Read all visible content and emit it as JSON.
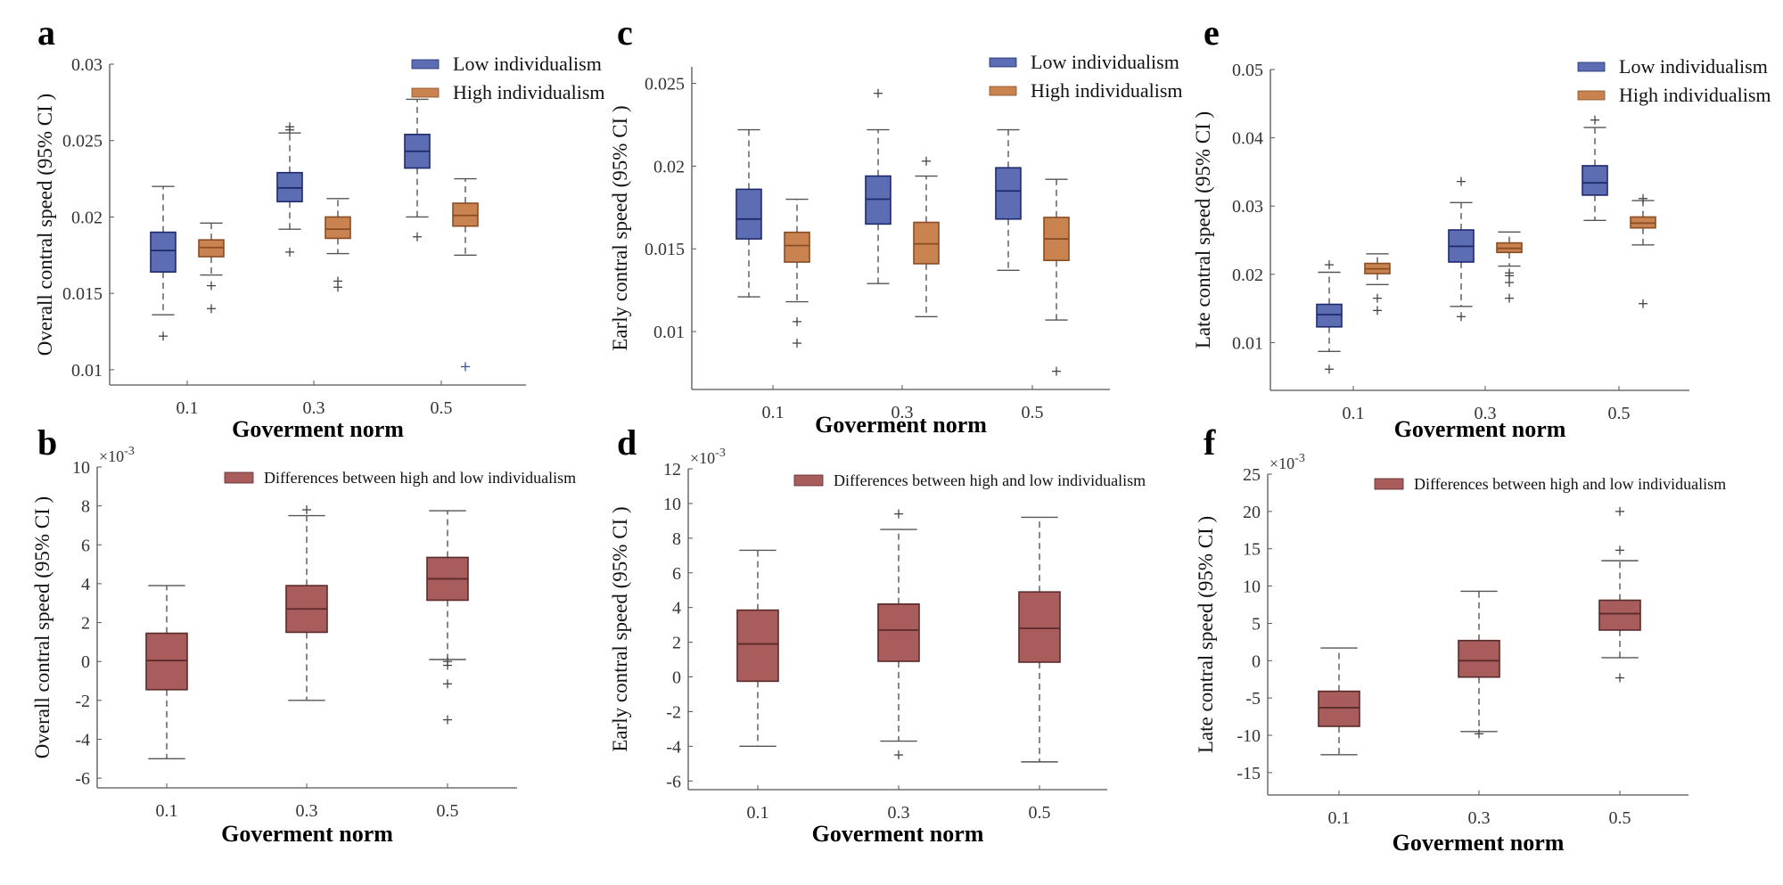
{
  "figure": {
    "colors": {
      "low": "#5c6db3",
      "low_edge": "#1f2a6b",
      "high": "#c88350",
      "high_edge": "#8a4d22",
      "diff": "#a85c5c",
      "diff_edge": "#5a2a2a",
      "whisker": "#555555",
      "outlier": "#444444",
      "outlier_blue": "#3a4fa8"
    }
  },
  "chart_data": [
    {
      "panel": "a",
      "type": "box",
      "xlabel": "Goverment norm",
      "ylabel": "Overall contral speed (95% CI )",
      "categories": [
        "0.1",
        "0.3",
        "0.5"
      ],
      "ylim": [
        0.009,
        0.03
      ],
      "yticks": [
        0.01,
        0.015,
        0.02,
        0.025,
        0.03
      ],
      "ytick_labels": [
        "0.01",
        "0.015",
        "0.02",
        "0.025",
        "0.03"
      ],
      "multiplier": "",
      "legend": [
        "Low individualism",
        "High individualism"
      ],
      "legend_position": "top-right",
      "series": [
        {
          "name": "Low individualism",
          "boxes": [
            {
              "whislo": 0.0136,
              "q1": 0.0164,
              "med": 0.0178,
              "q3": 0.019,
              "whishi": 0.022,
              "fliers": [
                0.0122
              ]
            },
            {
              "whislo": 0.0192,
              "q1": 0.021,
              "med": 0.0219,
              "q3": 0.0229,
              "whishi": 0.0255,
              "fliers": [
                0.0177,
                0.0257,
                0.0259
              ]
            },
            {
              "whislo": 0.02,
              "q1": 0.0232,
              "med": 0.0243,
              "q3": 0.0254,
              "whishi": 0.0277,
              "fliers": [
                0.0187
              ]
            }
          ]
        },
        {
          "name": "High individualism",
          "boxes": [
            {
              "whislo": 0.0162,
              "q1": 0.0174,
              "med": 0.018,
              "q3": 0.0185,
              "whishi": 0.0196,
              "fliers": [
                0.0155,
                0.014
              ]
            },
            {
              "whislo": 0.0176,
              "q1": 0.0186,
              "med": 0.0192,
              "q3": 0.02,
              "whishi": 0.0212,
              "fliers": [
                0.0158,
                0.0154
              ]
            },
            {
              "whislo": 0.0175,
              "q1": 0.0194,
              "med": 0.0201,
              "q3": 0.0209,
              "whishi": 0.0225,
              "fliers": [
                0.0102
              ]
            }
          ]
        }
      ]
    },
    {
      "panel": "b",
      "type": "box",
      "xlabel": "Goverment norm",
      "ylabel": "Overall contral speed (95% CI )",
      "categories": [
        "0.1",
        "0.3",
        "0.5"
      ],
      "ylim": [
        -6.5,
        10
      ],
      "yticks": [
        -6,
        -4,
        -2,
        0,
        2,
        4,
        6,
        8,
        10
      ],
      "ytick_labels": [
        "-6",
        "-4",
        "-2",
        "0",
        "2",
        "4",
        "6",
        "8",
        "10"
      ],
      "multiplier": "×10-3",
      "legend": [
        "Differences between high and low individualism"
      ],
      "legend_position": "top-right",
      "series": [
        {
          "name": "Differences between high and low individualism",
          "boxes": [
            {
              "whislo": -5.0,
              "q1": -1.45,
              "med": 0.05,
              "q3": 1.45,
              "whishi": 3.9,
              "fliers": []
            },
            {
              "whislo": -2.0,
              "q1": 1.5,
              "med": 2.7,
              "q3": 3.9,
              "whishi": 7.5,
              "fliers": [
                7.8
              ]
            },
            {
              "whislo": 0.1,
              "q1": 3.15,
              "med": 4.25,
              "q3": 5.35,
              "whishi": 7.75,
              "fliers": [
                0.0,
                -0.2,
                -1.15,
                -3.0
              ]
            }
          ]
        }
      ]
    },
    {
      "panel": "c",
      "type": "box",
      "xlabel": "Goverment norm",
      "ylabel": "Early contral speed (95% CI )",
      "categories": [
        "0.1",
        "0.3",
        "0.5"
      ],
      "ylim": [
        0.0065,
        0.026
      ],
      "yticks": [
        0.01,
        0.015,
        0.02,
        0.025
      ],
      "ytick_labels": [
        "0.01",
        "0.015",
        "0.02",
        "0.025"
      ],
      "multiplier": "",
      "legend": [
        "Low individualism",
        "High individualism"
      ],
      "legend_position": "top-right",
      "series": [
        {
          "name": "Low individualism",
          "boxes": [
            {
              "whislo": 0.0121,
              "q1": 0.0156,
              "med": 0.0168,
              "q3": 0.0186,
              "whishi": 0.0222,
              "fliers": []
            },
            {
              "whislo": 0.0129,
              "q1": 0.0165,
              "med": 0.018,
              "q3": 0.0194,
              "whishi": 0.0222,
              "fliers": [
                0.0244
              ]
            },
            {
              "whislo": 0.0137,
              "q1": 0.0168,
              "med": 0.0185,
              "q3": 0.0199,
              "whishi": 0.0222,
              "fliers": []
            }
          ]
        },
        {
          "name": "High individualism",
          "boxes": [
            {
              "whislo": 0.0118,
              "q1": 0.0142,
              "med": 0.0152,
              "q3": 0.016,
              "whishi": 0.018,
              "fliers": [
                0.0106,
                0.0093
              ]
            },
            {
              "whislo": 0.0109,
              "q1": 0.0141,
              "med": 0.0153,
              "q3": 0.0166,
              "whishi": 0.0194,
              "fliers": [
                0.0203
              ]
            },
            {
              "whislo": 0.0107,
              "q1": 0.0143,
              "med": 0.0156,
              "q3": 0.0169,
              "whishi": 0.0192,
              "fliers": [
                0.0076
              ]
            }
          ]
        }
      ]
    },
    {
      "panel": "d",
      "type": "box",
      "xlabel": "Goverment norm",
      "ylabel": "Early contral speed (95% CI )",
      "categories": [
        "0.1",
        "0.3",
        "0.5"
      ],
      "ylim": [
        -6.5,
        12
      ],
      "yticks": [
        -6,
        -4,
        -2,
        0,
        2,
        4,
        6,
        8,
        10,
        12
      ],
      "ytick_labels": [
        "-6",
        "-4",
        "-2",
        "0",
        "2",
        "4",
        "6",
        "8",
        "10",
        "12"
      ],
      "multiplier": "×10-3",
      "legend": [
        "Differences between high and low individualism"
      ],
      "legend_position": "top-right",
      "series": [
        {
          "name": "Differences between high and low individualism",
          "boxes": [
            {
              "whislo": -4.0,
              "q1": -0.25,
              "med": 1.9,
              "q3": 3.85,
              "whishi": 7.3,
              "fliers": []
            },
            {
              "whislo": -3.7,
              "q1": 0.9,
              "med": 2.7,
              "q3": 4.2,
              "whishi": 8.5,
              "fliers": [
                9.4,
                -4.5
              ]
            },
            {
              "whislo": -4.9,
              "q1": 0.85,
              "med": 2.8,
              "q3": 4.9,
              "whishi": 9.2,
              "fliers": []
            }
          ]
        }
      ]
    },
    {
      "panel": "e",
      "type": "box",
      "xlabel": "Goverment norm",
      "ylabel": "Late contral speed (95% CI )",
      "categories": [
        "0.1",
        "0.3",
        "0.5"
      ],
      "ylim": [
        0.003,
        0.05
      ],
      "yticks": [
        0.01,
        0.02,
        0.03,
        0.04,
        0.05
      ],
      "ytick_labels": [
        "0.01",
        "0.02",
        "0.03",
        "0.04",
        "0.05"
      ],
      "multiplier": "",
      "legend": [
        "Low individualism",
        "High individualism"
      ],
      "legend_position": "top-right",
      "series": [
        {
          "name": "Low individualism",
          "boxes": [
            {
              "whislo": 0.0087,
              "q1": 0.0123,
              "med": 0.0141,
              "q3": 0.0156,
              "whishi": 0.0203,
              "fliers": [
                0.0214,
                0.0061
              ]
            },
            {
              "whislo": 0.0153,
              "q1": 0.0218,
              "med": 0.0241,
              "q3": 0.0265,
              "whishi": 0.0305,
              "fliers": [
                0.0336,
                0.0138
              ]
            },
            {
              "whislo": 0.0279,
              "q1": 0.0316,
              "med": 0.0334,
              "q3": 0.0359,
              "whishi": 0.0415,
              "fliers": [
                0.0426
              ]
            }
          ]
        },
        {
          "name": "High individualism",
          "boxes": [
            {
              "whislo": 0.0185,
              "q1": 0.0201,
              "med": 0.0208,
              "q3": 0.0216,
              "whishi": 0.023,
              "fliers": [
                0.0165,
                0.0147
              ]
            },
            {
              "whislo": 0.0212,
              "q1": 0.0232,
              "med": 0.0238,
              "q3": 0.0246,
              "whishi": 0.0262,
              "fliers": [
                0.0202,
                0.0198,
                0.0188,
                0.0165
              ]
            },
            {
              "whislo": 0.0243,
              "q1": 0.0268,
              "med": 0.0275,
              "q3": 0.0284,
              "whishi": 0.0308,
              "fliers": [
                0.0311,
                0.0157
              ]
            }
          ]
        }
      ]
    },
    {
      "panel": "f",
      "type": "box",
      "xlabel": "Goverment norm",
      "ylabel": "Late contral speed (95% CI )",
      "categories": [
        "0.1",
        "0.3",
        "0.5"
      ],
      "ylim": [
        -18,
        25
      ],
      "yticks": [
        -15,
        -10,
        -5,
        0,
        5,
        10,
        15,
        20,
        25
      ],
      "ytick_labels": [
        "-15",
        "-10",
        "-5",
        "0",
        "5",
        "10",
        "15",
        "20",
        "25"
      ],
      "multiplier": "×10-3",
      "legend": [
        "Differences between high and low individualism"
      ],
      "legend_position": "top-right",
      "series": [
        {
          "name": "Differences between high and low individualism",
          "boxes": [
            {
              "whislo": -12.6,
              "q1": -8.8,
              "med": -6.3,
              "q3": -4.1,
              "whishi": 1.7,
              "fliers": []
            },
            {
              "whislo": -9.5,
              "q1": -2.2,
              "med": 0.0,
              "q3": 2.7,
              "whishi": 9.3,
              "fliers": [
                -9.8
              ]
            },
            {
              "whislo": 0.4,
              "q1": 4.1,
              "med": 6.3,
              "q3": 8.1,
              "whishi": 13.4,
              "fliers": [
                20.0,
                14.8,
                -2.3
              ]
            }
          ]
        }
      ]
    }
  ]
}
